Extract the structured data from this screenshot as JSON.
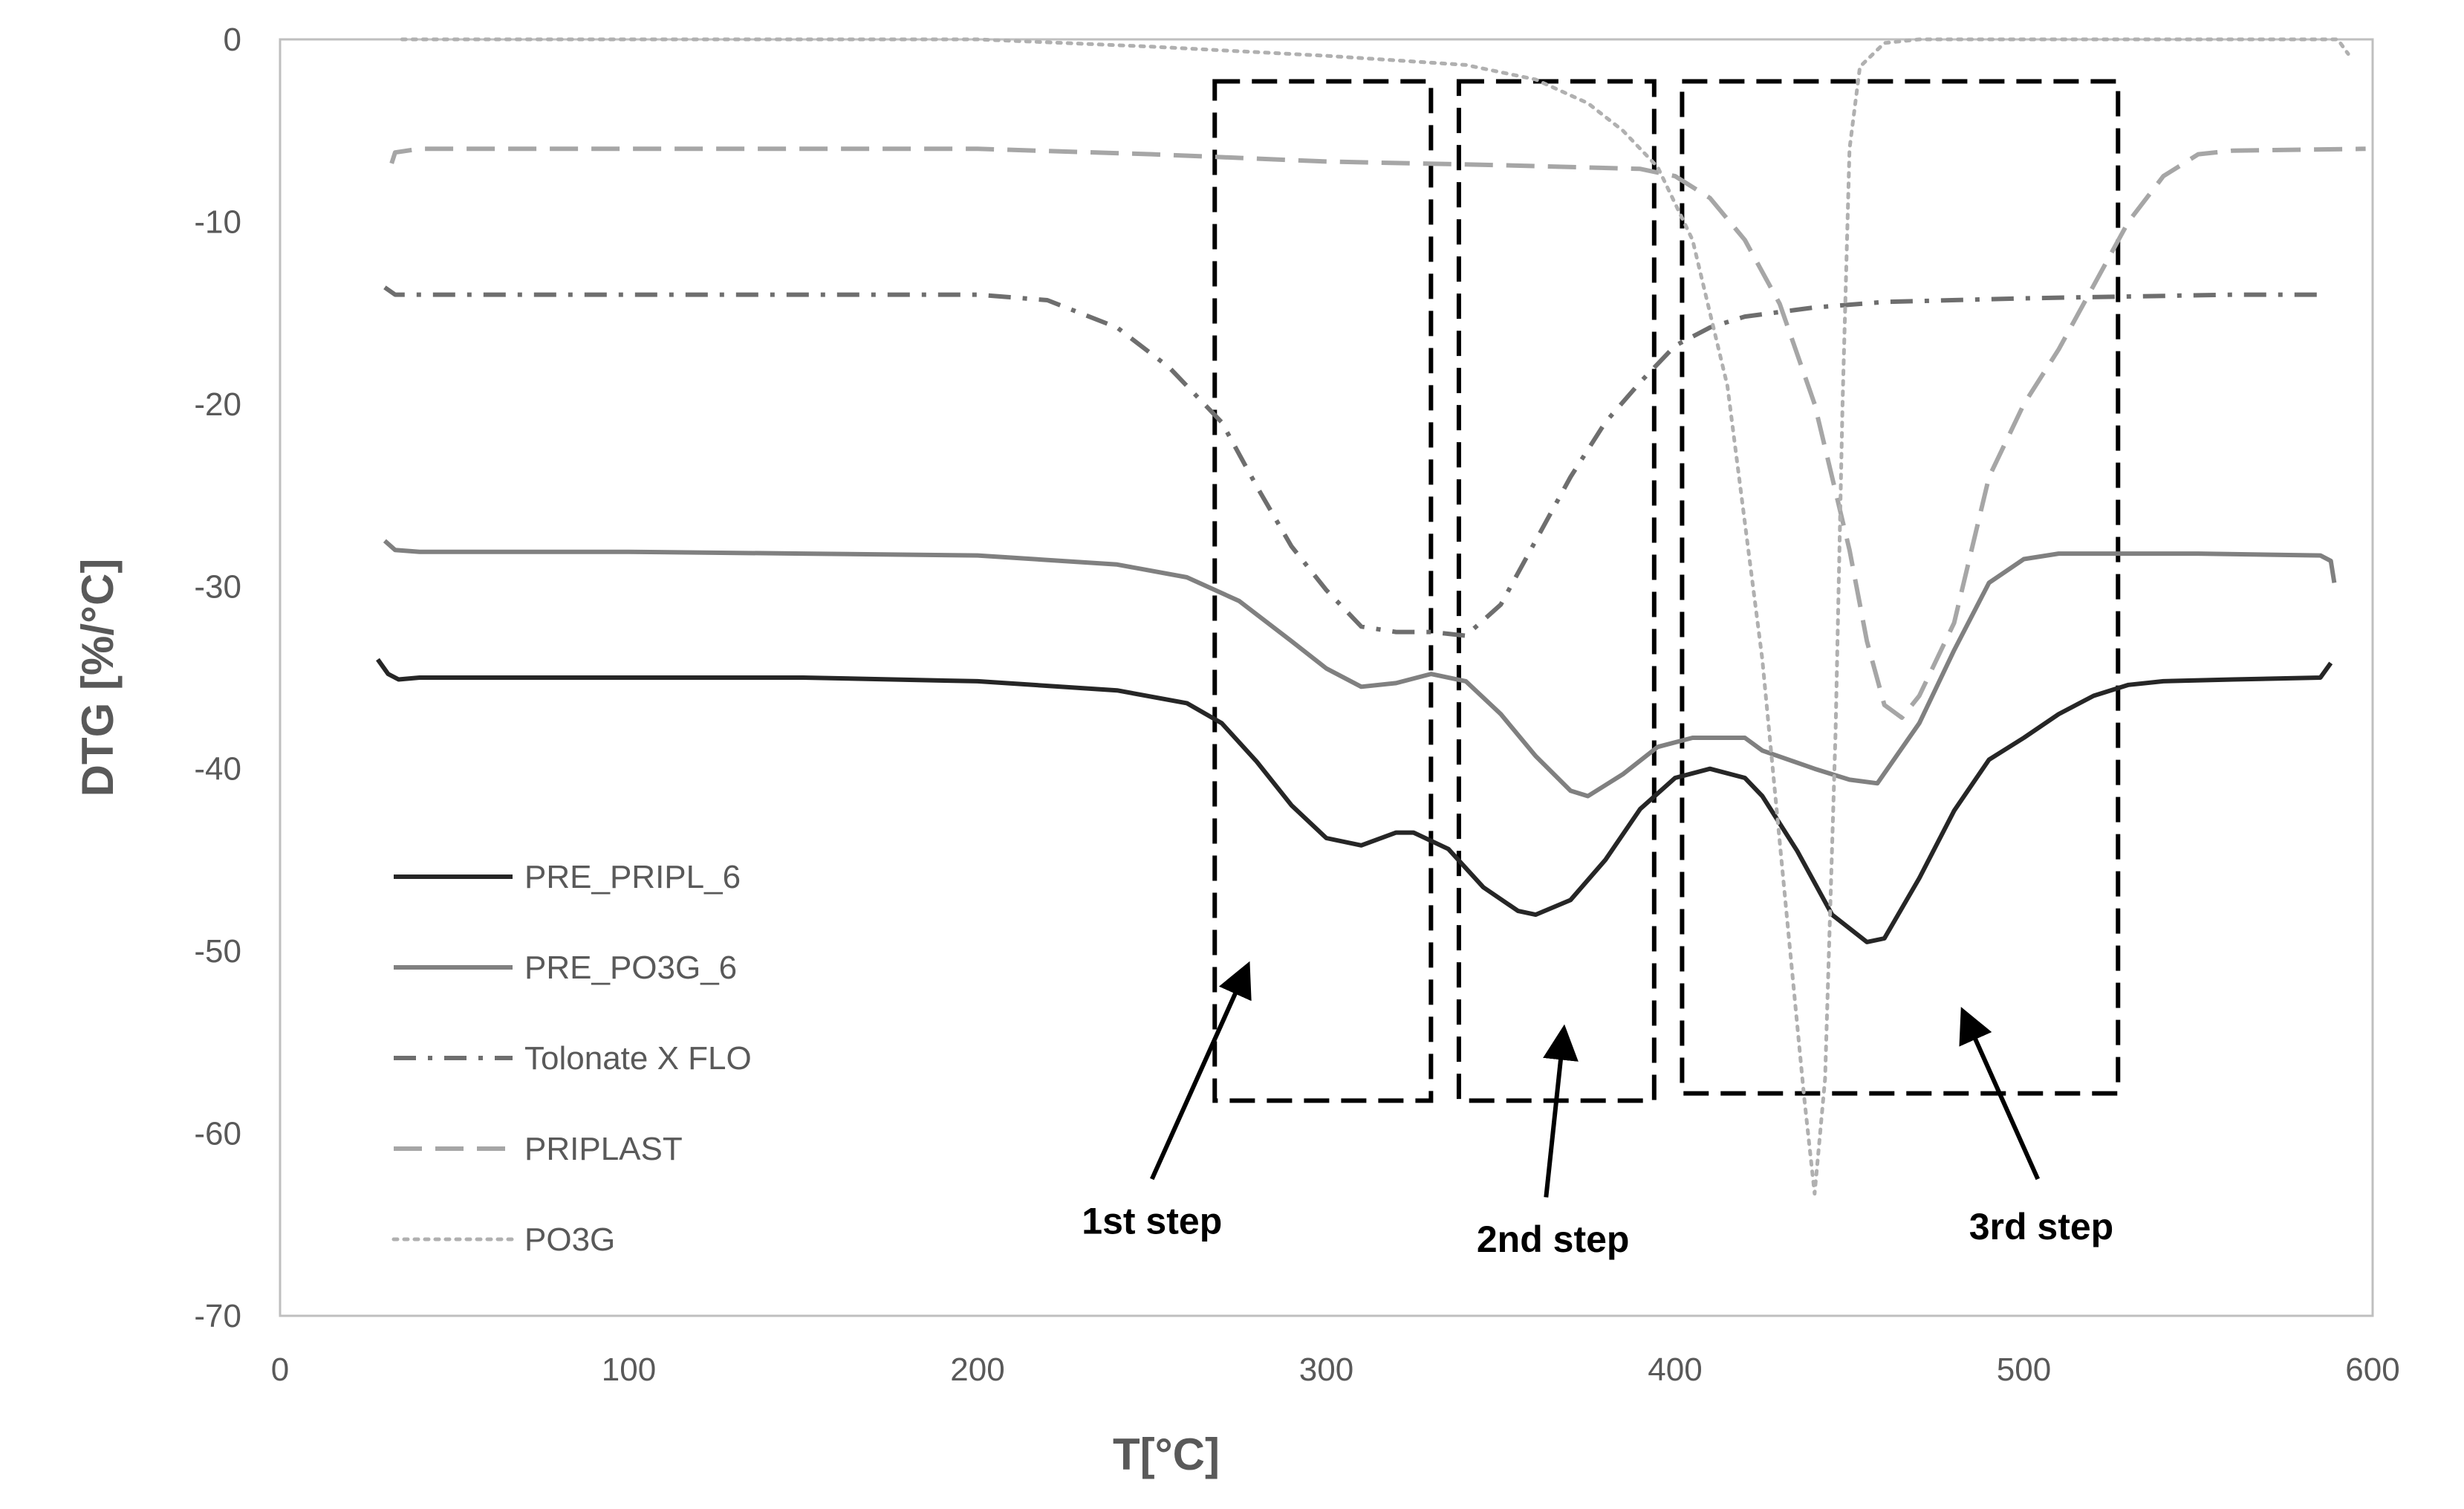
{
  "chart_data": {
    "type": "line",
    "title": "",
    "xlabel": "T[°C]",
    "ylabel": "DTG [%/°C]",
    "xlim": [
      0,
      600
    ],
    "ylim": [
      -70,
      0
    ],
    "xticks": [
      0,
      100,
      200,
      300,
      400,
      500,
      600
    ],
    "yticks": [
      0,
      -10,
      -20,
      -30,
      -40,
      -50,
      -60,
      -70
    ],
    "grid": false,
    "legend_placement": "left",
    "series": [
      {
        "name": "PRE_PRIPL_6",
        "style": "solid",
        "color": "#262626",
        "points": [
          [
            28,
            -34
          ],
          [
            31,
            -34.8
          ],
          [
            34,
            -35.1
          ],
          [
            40,
            -35
          ],
          [
            100,
            -35
          ],
          [
            150,
            -35
          ],
          [
            200,
            -35.2
          ],
          [
            240,
            -35.7
          ],
          [
            260,
            -36.4
          ],
          [
            270,
            -37.5
          ],
          [
            280,
            -39.6
          ],
          [
            290,
            -42
          ],
          [
            300,
            -43.8
          ],
          [
            310,
            -44.2
          ],
          [
            320,
            -43.5
          ],
          [
            325,
            -43.5
          ],
          [
            335,
            -44.4
          ],
          [
            345,
            -46.5
          ],
          [
            355,
            -47.8
          ],
          [
            360,
            -48
          ],
          [
            370,
            -47.2
          ],
          [
            380,
            -45
          ],
          [
            390,
            -42.2
          ],
          [
            400,
            -40.5
          ],
          [
            410,
            -40
          ],
          [
            420,
            -40.5
          ],
          [
            425,
            -41.5
          ],
          [
            435,
            -44.5
          ],
          [
            445,
            -48
          ],
          [
            455,
            -49.5
          ],
          [
            460,
            -49.3
          ],
          [
            470,
            -46
          ],
          [
            480,
            -42.3
          ],
          [
            490,
            -39.5
          ],
          [
            500,
            -38.3
          ],
          [
            510,
            -37
          ],
          [
            520,
            -36
          ],
          [
            530,
            -35.4
          ],
          [
            540,
            -35.2
          ],
          [
            560,
            -35.1
          ],
          [
            585,
            -35
          ],
          [
            588,
            -34.2
          ]
        ]
      },
      {
        "name": "PRE_PO3G_6",
        "style": "solid",
        "color": "#808080",
        "points": [
          [
            30,
            -27.5
          ],
          [
            33,
            -28
          ],
          [
            40,
            -28.1
          ],
          [
            100,
            -28.1
          ],
          [
            150,
            -28.2
          ],
          [
            200,
            -28.3
          ],
          [
            240,
            -28.8
          ],
          [
            260,
            -29.5
          ],
          [
            275,
            -30.8
          ],
          [
            290,
            -33
          ],
          [
            300,
            -34.5
          ],
          [
            310,
            -35.5
          ],
          [
            320,
            -35.3
          ],
          [
            330,
            -34.8
          ],
          [
            340,
            -35.2
          ],
          [
            350,
            -37
          ],
          [
            360,
            -39.3
          ],
          [
            370,
            -41.2
          ],
          [
            375,
            -41.5
          ],
          [
            385,
            -40.3
          ],
          [
            395,
            -38.8
          ],
          [
            405,
            -38.3
          ],
          [
            420,
            -38.3
          ],
          [
            425,
            -39
          ],
          [
            440,
            -40
          ],
          [
            450,
            -40.6
          ],
          [
            458,
            -40.8
          ],
          [
            470,
            -37.5
          ],
          [
            480,
            -33.5
          ],
          [
            490,
            -29.8
          ],
          [
            500,
            -28.5
          ],
          [
            510,
            -28.2
          ],
          [
            550,
            -28.2
          ],
          [
            585,
            -28.3
          ],
          [
            588,
            -28.6
          ],
          [
            589,
            -29.8
          ]
        ]
      },
      {
        "name": "Tolonate X FLO",
        "style": "dashdot",
        "color": "#6e6e6e",
        "points": [
          [
            30,
            -13.6
          ],
          [
            33,
            -14
          ],
          [
            40,
            -14
          ],
          [
            100,
            -14
          ],
          [
            150,
            -14
          ],
          [
            200,
            -14
          ],
          [
            220,
            -14.3
          ],
          [
            240,
            -15.8
          ],
          [
            255,
            -18
          ],
          [
            270,
            -21
          ],
          [
            280,
            -24.5
          ],
          [
            290,
            -27.8
          ],
          [
            300,
            -30.2
          ],
          [
            310,
            -32.2
          ],
          [
            320,
            -32.5
          ],
          [
            330,
            -32.5
          ],
          [
            340,
            -32.7
          ],
          [
            350,
            -31
          ],
          [
            360,
            -27.5
          ],
          [
            370,
            -24
          ],
          [
            380,
            -21
          ],
          [
            390,
            -18.8
          ],
          [
            400,
            -16.8
          ],
          [
            410,
            -15.8
          ],
          [
            420,
            -15.2
          ],
          [
            440,
            -14.7
          ],
          [
            460,
            -14.4
          ],
          [
            500,
            -14.2
          ],
          [
            560,
            -14
          ],
          [
            585,
            -14
          ]
        ]
      },
      {
        "name": "PRIPLAST",
        "style": "dashed",
        "color": "#a6a6a6",
        "points": [
          [
            32,
            -6.8
          ],
          [
            33,
            -6.2
          ],
          [
            40,
            -6
          ],
          [
            100,
            -6
          ],
          [
            200,
            -6
          ],
          [
            250,
            -6.3
          ],
          [
            300,
            -6.7
          ],
          [
            350,
            -6.9
          ],
          [
            390,
            -7.1
          ],
          [
            400,
            -7.5
          ],
          [
            410,
            -8.7
          ],
          [
            420,
            -11
          ],
          [
            430,
            -14.5
          ],
          [
            440,
            -20
          ],
          [
            450,
            -28
          ],
          [
            455,
            -33
          ],
          [
            460,
            -36.5
          ],
          [
            465,
            -37.2
          ],
          [
            470,
            -36
          ],
          [
            480,
            -32
          ],
          [
            490,
            -24
          ],
          [
            500,
            -20
          ],
          [
            510,
            -17
          ],
          [
            520,
            -13.5
          ],
          [
            530,
            -10
          ],
          [
            540,
            -7.5
          ],
          [
            550,
            -6.3
          ],
          [
            560,
            -6.1
          ],
          [
            598,
            -6
          ]
        ]
      },
      {
        "name": "PO3G",
        "style": "dotted",
        "color": "#b0b0b0",
        "points": [
          [
            35,
            0
          ],
          [
            100,
            0
          ],
          [
            200,
            0
          ],
          [
            250,
            -0.4
          ],
          [
            300,
            -0.9
          ],
          [
            340,
            -1.4
          ],
          [
            360,
            -2.2
          ],
          [
            375,
            -3.5
          ],
          [
            385,
            -5
          ],
          [
            395,
            -7
          ],
          [
            405,
            -11
          ],
          [
            415,
            -19
          ],
          [
            425,
            -34
          ],
          [
            432,
            -48
          ],
          [
            437,
            -58
          ],
          [
            440,
            -63.3
          ],
          [
            443,
            -57
          ],
          [
            446,
            -38
          ],
          [
            448,
            -20
          ],
          [
            450,
            -6
          ],
          [
            453,
            -1.5
          ],
          [
            460,
            -0.2
          ],
          [
            470,
            0
          ],
          [
            500,
            0
          ],
          [
            550,
            0
          ],
          [
            590,
            0
          ],
          [
            593,
            -0.8
          ]
        ]
      }
    ],
    "annotations": [
      {
        "text": "1st step",
        "box": {
          "x": [
            268,
            330
          ],
          "y": [
            -2.3,
            -58.2
          ]
        },
        "text_at": [
          250,
          -65.5
        ],
        "arrow_from": [
          250,
          -62.5
        ],
        "arrow_to": [
          277,
          -51
        ]
      },
      {
        "text": "2nd step",
        "box": {
          "x": [
            338,
            394
          ],
          "y": [
            -2.3,
            -58.2
          ]
        },
        "text_at": [
          365,
          -66.5
        ],
        "arrow_from": [
          363,
          -63.5
        ],
        "arrow_to": [
          368,
          -54.5
        ]
      },
      {
        "text": "3rd step",
        "box": {
          "x": [
            402,
            527
          ],
          "y": [
            -2.3,
            -57.8
          ]
        },
        "text_at": [
          505,
          -65.8
        ],
        "arrow_from": [
          504,
          -62.5
        ],
        "arrow_to": [
          483,
          -53.5
        ]
      }
    ]
  }
}
